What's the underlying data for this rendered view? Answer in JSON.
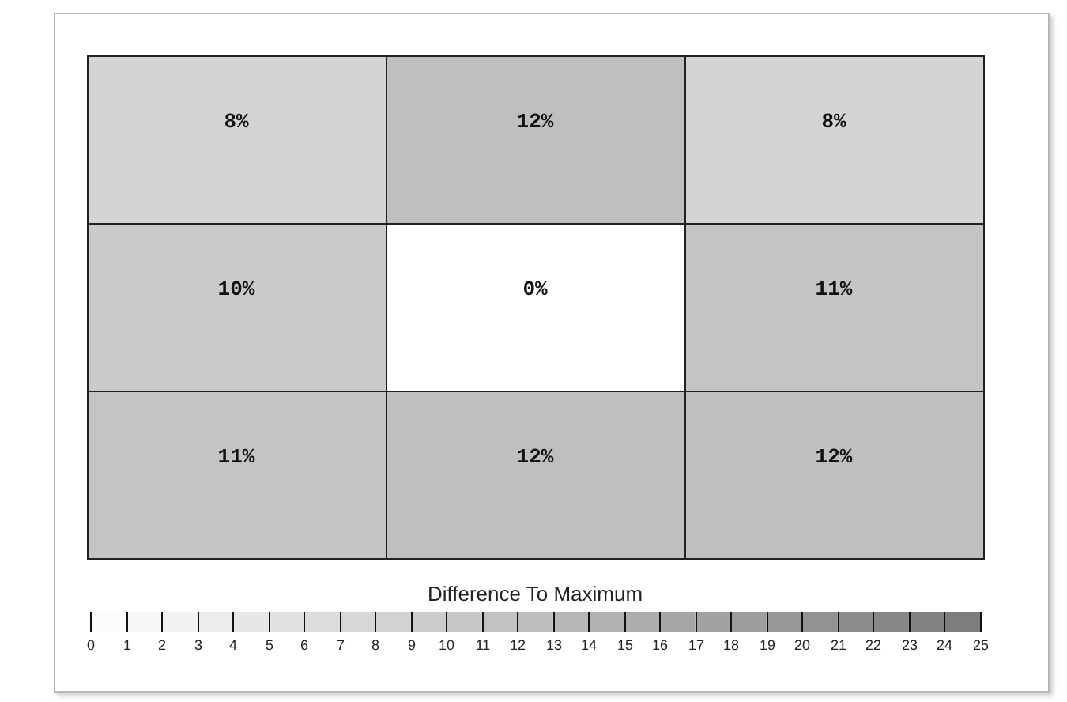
{
  "chart_data": {
    "type": "heatmap",
    "clabel": "Difference To Maximum",
    "categories": [
      null,
      null,
      null
    ],
    "y_categories": [
      null,
      null,
      null
    ],
    "cells": [
      [
        8,
        12,
        8
      ],
      [
        10,
        0,
        11
      ],
      [
        11,
        12,
        12
      ]
    ],
    "cell_labels": [
      [
        "8%",
        "12%",
        "8%"
      ],
      [
        "10%",
        "0%",
        "11%"
      ],
      [
        "11%",
        "12%",
        "12%"
      ]
    ],
    "clim": [
      0,
      25
    ],
    "cticks": [
      0,
      1,
      2,
      3,
      4,
      5,
      6,
      7,
      8,
      9,
      10,
      11,
      12,
      13,
      14,
      15,
      16,
      17,
      18,
      19,
      20,
      21,
      22,
      23,
      24,
      25
    ]
  }
}
